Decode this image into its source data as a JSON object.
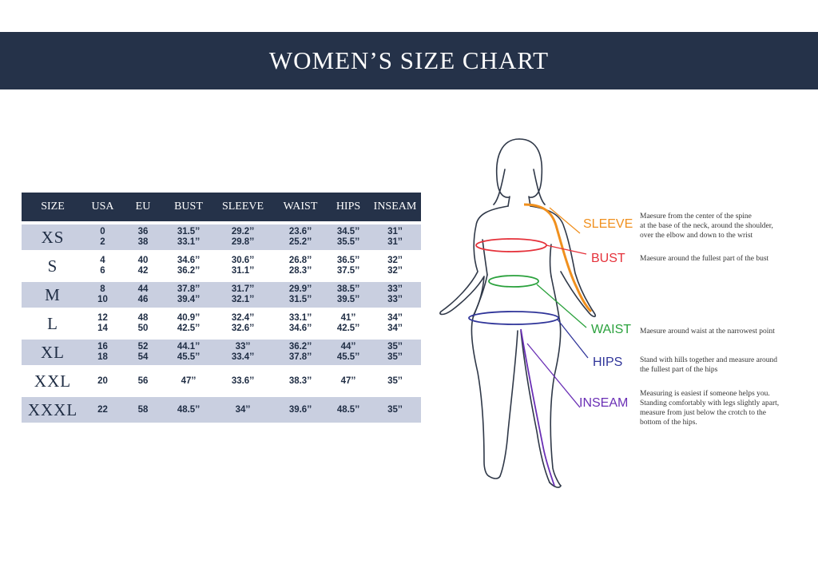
{
  "title": "WOMEN’S SIZE CHART",
  "colors": {
    "banner": "#253249",
    "row_shade": "#c9cfe0",
    "sleeve": "#f0901e",
    "bust": "#e5313a",
    "waist": "#2aa13c",
    "hips": "#2f3499",
    "inseam": "#6a2fb5",
    "figure_outline": "#2f3848"
  },
  "table": {
    "headers": [
      "SIZE",
      "USA",
      "EU",
      "BUST",
      "SLEEVE",
      "WAIST",
      "HIPS",
      "INSEAM"
    ],
    "rows": [
      {
        "size": "XS",
        "usa": [
          "0",
          "2"
        ],
        "eu": [
          "36",
          "38"
        ],
        "bust": [
          "31.5’’",
          "33.1’’"
        ],
        "sleeve": [
          "29.2’’",
          "29.8’’"
        ],
        "waist": [
          "23.6’’",
          "25.2’’"
        ],
        "hips": [
          "34.5’’",
          "35.5’’"
        ],
        "inseam": [
          "31’’",
          "31’’"
        ],
        "shaded": true
      },
      {
        "size": "S",
        "usa": [
          "4",
          "6"
        ],
        "eu": [
          "40",
          "42"
        ],
        "bust": [
          "34.6’’",
          "36.2’’"
        ],
        "sleeve": [
          "30.6’’",
          "31.1’’"
        ],
        "waist": [
          "26.8’’",
          "28.3’’"
        ],
        "hips": [
          "36.5’’",
          "37.5’’"
        ],
        "inseam": [
          "32’’",
          "32’’"
        ],
        "shaded": false
      },
      {
        "size": "M",
        "usa": [
          "8",
          "10"
        ],
        "eu": [
          "44",
          "46"
        ],
        "bust": [
          "37.8’’",
          "39.4’’"
        ],
        "sleeve": [
          "31.7’’",
          "32.1’’"
        ],
        "waist": [
          "29.9’’",
          "31.5’’"
        ],
        "hips": [
          "38.5’’",
          "39.5’’"
        ],
        "inseam": [
          "33’’",
          "33’’"
        ],
        "shaded": true
      },
      {
        "size": "L",
        "usa": [
          "12",
          "14"
        ],
        "eu": [
          "48",
          "50"
        ],
        "bust": [
          "40.9’’",
          "42.5’’"
        ],
        "sleeve": [
          "32.4’’",
          "32.6’’"
        ],
        "waist": [
          "33.1’’",
          "34.6’’"
        ],
        "hips": [
          "41’’",
          "42.5’’"
        ],
        "inseam": [
          "34’’",
          "34’’"
        ],
        "shaded": false
      },
      {
        "size": "XL",
        "usa": [
          "16",
          "18"
        ],
        "eu": [
          "52",
          "54"
        ],
        "bust": [
          "44.1’’",
          "45.5’’"
        ],
        "sleeve": [
          "33’’",
          "33.4’’"
        ],
        "waist": [
          "36.2’’",
          "37.8’’"
        ],
        "hips": [
          "44’’",
          "45.5’’"
        ],
        "inseam": [
          "35’’",
          "35’’"
        ],
        "shaded": true
      },
      {
        "size": "XXL",
        "usa": [
          "20"
        ],
        "eu": [
          "56"
        ],
        "bust": [
          "47’’"
        ],
        "sleeve": [
          "33.6’’"
        ],
        "waist": [
          "38.3’’"
        ],
        "hips": [
          "47’’"
        ],
        "inseam": [
          "35’’"
        ],
        "shaded": false
      },
      {
        "size": "XXXL",
        "usa": [
          "22"
        ],
        "eu": [
          "58"
        ],
        "bust": [
          "48.5’’"
        ],
        "sleeve": [
          "34’’"
        ],
        "waist": [
          "39.6’’"
        ],
        "hips": [
          "48.5’’"
        ],
        "inseam": [
          "35’’"
        ],
        "shaded": true
      }
    ]
  },
  "guide": {
    "sleeve": {
      "label": "SLEEVE",
      "lines": [
        "Maesure from the center of the spine",
        "at the base of the neck, around the shoulder,",
        "over the elbow and down to the wrist"
      ]
    },
    "bust": {
      "label": "BUST",
      "lines": [
        "Maesure around the fullest part of the bust"
      ]
    },
    "waist": {
      "label": "WAIST",
      "lines": [
        "Maesure around waist at the narrowest point"
      ]
    },
    "hips": {
      "label": "HIPS",
      "lines": [
        "Stand with hills together and measure around",
        "the fullest part of the hips"
      ]
    },
    "inseam": {
      "label": "INSEAM",
      "lines": [
        "Measuring is easiest if someone helps you.",
        "Standing comfortably with legs slightly apart,",
        "measure from just below the crotch to the",
        "bottom of the hips."
      ]
    }
  }
}
